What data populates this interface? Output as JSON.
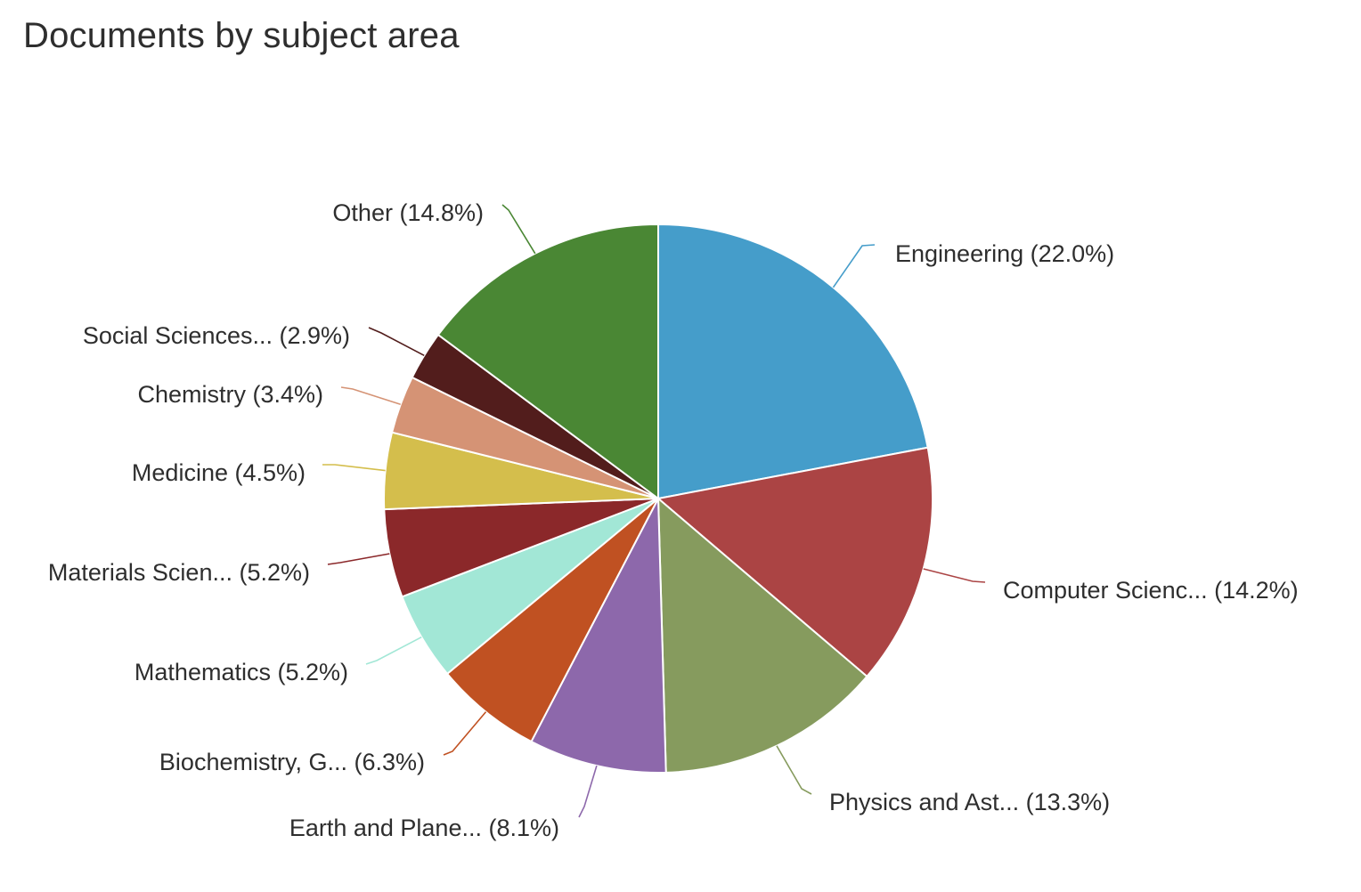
{
  "chart_data": {
    "type": "pie",
    "title": "Documents by subject area",
    "slices": [
      {
        "label": "Engineering",
        "display": "Engineering (22.0%)",
        "value": 22.0,
        "color": "#459dca"
      },
      {
        "label": "Computer Scienc...",
        "display": "Computer Scienc... (14.2%)",
        "value": 14.2,
        "color": "#ab4444"
      },
      {
        "label": "Physics and Ast...",
        "display": "Physics and Ast... (13.3%)",
        "value": 13.3,
        "color": "#869b5e"
      },
      {
        "label": "Earth and Plane...",
        "display": "Earth and Plane... (8.1%)",
        "value": 8.1,
        "color": "#8d68ab"
      },
      {
        "label": "Biochemistry, G...",
        "display": "Biochemistry, G... (6.3%)",
        "value": 6.3,
        "color": "#c05122"
      },
      {
        "label": "Mathematics",
        "display": "Mathematics (5.2%)",
        "value": 5.2,
        "color": "#a2e7d6"
      },
      {
        "label": "Materials Scien...",
        "display": "Materials Scien... (5.2%)",
        "value": 5.2,
        "color": "#8b282a"
      },
      {
        "label": "Medicine",
        "display": "Medicine (4.5%)",
        "value": 4.5,
        "color": "#d4be4c"
      },
      {
        "label": "Chemistry",
        "display": "Chemistry (3.4%)",
        "value": 3.4,
        "color": "#d59375"
      },
      {
        "label": "Social Sciences...",
        "display": "Social Sciences... (2.9%)",
        "value": 2.9,
        "color": "#521d1c"
      },
      {
        "label": "Other",
        "display": "Other (14.8%)",
        "value": 14.8,
        "color": "#4a8734"
      }
    ]
  }
}
